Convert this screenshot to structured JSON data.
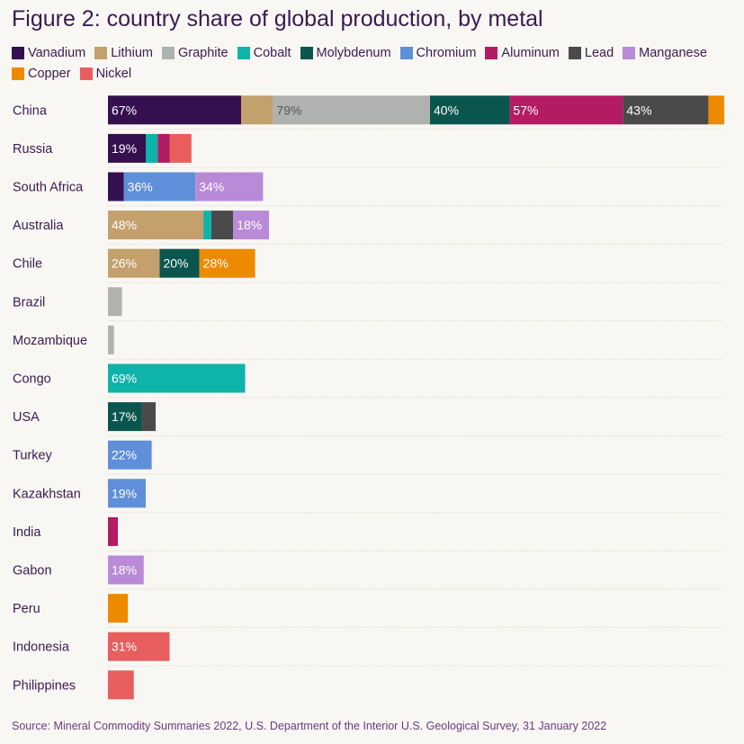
{
  "title": "Figure 2: country share of global production, by metal",
  "source": "Source: Mineral Commodity Summaries 2022, U.S. Department of the Interior U.S. Geological Survey, 31 January 2022",
  "colors": {
    "title": "#3b1a52",
    "label_light": "#ffffff",
    "label_dark": "#555555",
    "gridline": "#dcdad4"
  },
  "chart_data": {
    "type": "bar",
    "orientation": "horizontal",
    "stacked": true,
    "title": "Figure 2: country share of global production, by metal",
    "xlabel": "",
    "ylabel": "",
    "value_unit": "%",
    "legend_position": "top",
    "metals": [
      {
        "name": "Vanadium",
        "color": "#35104f",
        "label_color": "#ffffff"
      },
      {
        "name": "Lithium",
        "color": "#c4a06d",
        "label_color": "#ffffff"
      },
      {
        "name": "Graphite",
        "color": "#b0b2b0",
        "label_color": "#555555"
      },
      {
        "name": "Cobalt",
        "color": "#0eb3aa",
        "label_color": "#ffffff"
      },
      {
        "name": "Molybdenum",
        "color": "#0a564e",
        "label_color": "#ffffff"
      },
      {
        "name": "Chromium",
        "color": "#5f8fd9",
        "label_color": "#ffffff"
      },
      {
        "name": "Aluminum",
        "color": "#b31b63",
        "label_color": "#ffffff"
      },
      {
        "name": "Lead",
        "color": "#4a4a4a",
        "label_color": "#ffffff"
      },
      {
        "name": "Manganese",
        "color": "#b98ad8",
        "label_color": "#ffffff"
      },
      {
        "name": "Copper",
        "color": "#ee8a00",
        "label_color": "#ffffff"
      },
      {
        "name": "Nickel",
        "color": "#e85e5e",
        "label_color": "#ffffff"
      }
    ],
    "countries": [
      {
        "name": "China",
        "segments": [
          {
            "metal": "Vanadium",
            "value": 67,
            "label": "67%"
          },
          {
            "metal": "Lithium",
            "value": 16
          },
          {
            "metal": "Graphite",
            "value": 79,
            "label": "79%"
          },
          {
            "metal": "Molybdenum",
            "value": 40,
            "label": "40%"
          },
          {
            "metal": "Aluminum",
            "value": 57,
            "label": "57%"
          },
          {
            "metal": "Lead",
            "value": 43,
            "label": "43%"
          },
          {
            "metal": "Copper",
            "value": 8
          }
        ]
      },
      {
        "name": "Russia",
        "segments": [
          {
            "metal": "Vanadium",
            "value": 19,
            "label": "19%"
          },
          {
            "metal": "Cobalt",
            "value": 6
          },
          {
            "metal": "Aluminum",
            "value": 6
          },
          {
            "metal": "Nickel",
            "value": 11
          }
        ]
      },
      {
        "name": "South Africa",
        "segments": [
          {
            "metal": "Vanadium",
            "value": 8
          },
          {
            "metal": "Chromium",
            "value": 36,
            "label": "36%"
          },
          {
            "metal": "Manganese",
            "value": 34,
            "label": "34%"
          }
        ]
      },
      {
        "name": "Australia",
        "segments": [
          {
            "metal": "Lithium",
            "value": 48,
            "label": "48%"
          },
          {
            "metal": "Cobalt",
            "value": 4
          },
          {
            "metal": "Lead",
            "value": 11
          },
          {
            "metal": "Manganese",
            "value": 18,
            "label": "18%"
          }
        ]
      },
      {
        "name": "Chile",
        "segments": [
          {
            "metal": "Lithium",
            "value": 26,
            "label": "26%"
          },
          {
            "metal": "Molybdenum",
            "value": 20,
            "label": "20%"
          },
          {
            "metal": "Copper",
            "value": 28,
            "label": "28%"
          }
        ]
      },
      {
        "name": "Brazil",
        "segments": [
          {
            "metal": "Graphite",
            "value": 7
          }
        ]
      },
      {
        "name": "Mozambique",
        "segments": [
          {
            "metal": "Graphite",
            "value": 3
          }
        ]
      },
      {
        "name": "Congo",
        "segments": [
          {
            "metal": "Cobalt",
            "value": 69,
            "label": "69%"
          }
        ]
      },
      {
        "name": "USA",
        "segments": [
          {
            "metal": "Molybdenum",
            "value": 17,
            "label": "17%"
          },
          {
            "metal": "Lead",
            "value": 7
          }
        ]
      },
      {
        "name": "Turkey",
        "segments": [
          {
            "metal": "Chromium",
            "value": 22,
            "label": "22%"
          }
        ]
      },
      {
        "name": "Kazakhstan",
        "segments": [
          {
            "metal": "Chromium",
            "value": 19,
            "label": "19%"
          }
        ]
      },
      {
        "name": "India",
        "segments": [
          {
            "metal": "Aluminum",
            "value": 5
          }
        ]
      },
      {
        "name": "Gabon",
        "segments": [
          {
            "metal": "Manganese",
            "value": 18,
            "label": "18%"
          }
        ]
      },
      {
        "name": "Peru",
        "segments": [
          {
            "metal": "Copper",
            "value": 10
          }
        ]
      },
      {
        "name": "Indonesia",
        "segments": [
          {
            "metal": "Nickel",
            "value": 31,
            "label": "31%"
          }
        ]
      },
      {
        "name": "Philippines",
        "segments": [
          {
            "metal": "Nickel",
            "value": 13
          }
        ]
      }
    ]
  }
}
